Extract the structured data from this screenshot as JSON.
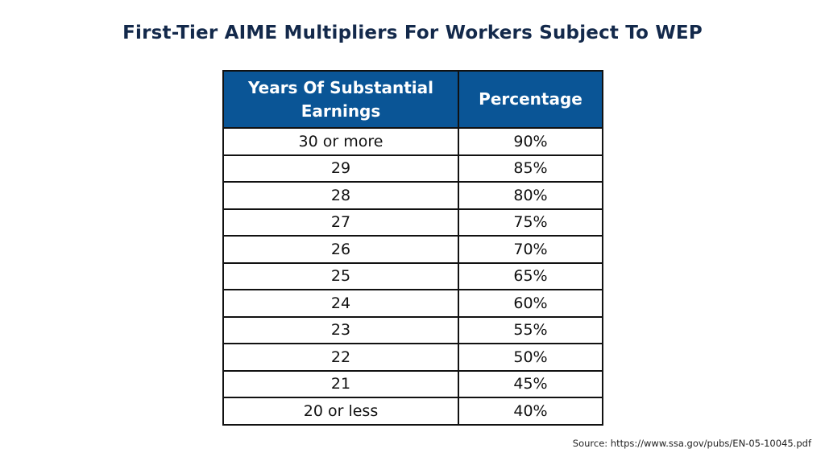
{
  "title": "First-Tier AIME Multipliers For Workers Subject To WEP",
  "table": {
    "headers": [
      "Years Of Substantial Earnings",
      "Percentage"
    ],
    "rows": [
      [
        "30 or more",
        "90%"
      ],
      [
        "29",
        "85%"
      ],
      [
        "28",
        "80%"
      ],
      [
        "27",
        "75%"
      ],
      [
        "26",
        "70%"
      ],
      [
        "25",
        "65%"
      ],
      [
        "24",
        "60%"
      ],
      [
        "23",
        "55%"
      ],
      [
        "22",
        "50%"
      ],
      [
        "21",
        "45%"
      ],
      [
        "20 or less",
        "40%"
      ]
    ]
  },
  "source": "Source: https://www.ssa.gov/pubs/EN-05-10045.pdf",
  "colors": {
    "header_bg": "#0a5596",
    "title": "#13294b"
  }
}
